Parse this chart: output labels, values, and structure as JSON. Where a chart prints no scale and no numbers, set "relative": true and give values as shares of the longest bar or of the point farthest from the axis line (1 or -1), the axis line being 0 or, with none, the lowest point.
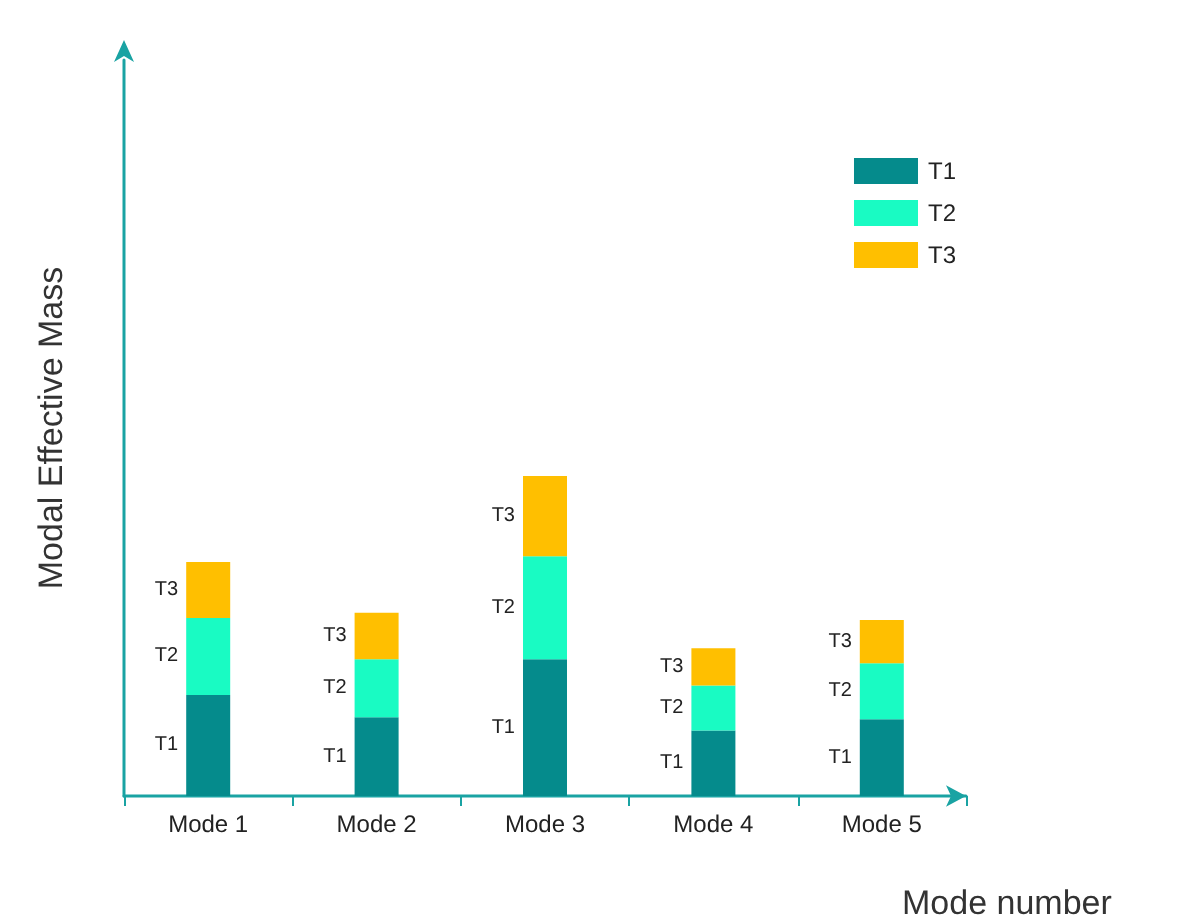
{
  "chart_data": {
    "type": "bar",
    "stacked": true,
    "relative": true,
    "xlabel": "Mode number",
    "ylabel": "Modal Effective Mass",
    "categories": [
      "Mode 1",
      "Mode 2",
      "Mode 3",
      "Mode 4",
      "Mode 5"
    ],
    "series": [
      {
        "name": "T1",
        "color": "#058b8c",
        "values": [
          0.316,
          0.246,
          0.427,
          0.205,
          0.24
        ]
      },
      {
        "name": "T2",
        "color": "#19fbc3",
        "values": [
          0.24,
          0.181,
          0.322,
          0.14,
          0.175
        ]
      },
      {
        "name": "T3",
        "color": "#ffbf00",
        "values": [
          0.175,
          0.146,
          0.251,
          0.117,
          0.135
        ]
      }
    ],
    "legend": "top right",
    "grid": false
  }
}
